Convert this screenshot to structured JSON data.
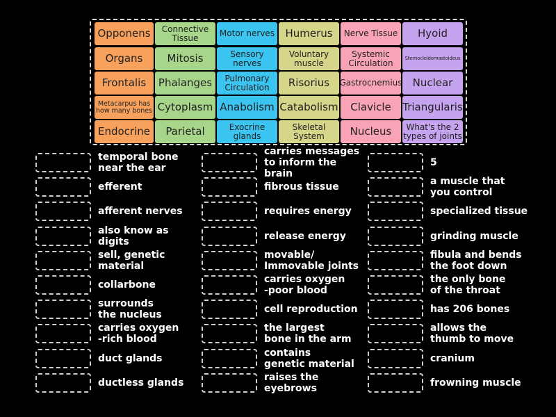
{
  "colors": {
    "orange": "#f7a15d",
    "green": "#a7d68a",
    "blue": "#3cc4f1",
    "khaki": "#d6d68a",
    "pink": "#f9a3b7",
    "purple": "#c6a3ee"
  },
  "tiles": [
    {
      "label": "Opponens",
      "color": "orange",
      "size": "l"
    },
    {
      "label": "Connective\nTissue",
      "color": "green",
      "size": "m"
    },
    {
      "label": "Motor nerves",
      "color": "blue",
      "size": "m"
    },
    {
      "label": "Humerus",
      "color": "khaki",
      "size": "l"
    },
    {
      "label": "Nerve Tissue",
      "color": "pink",
      "size": "m"
    },
    {
      "label": "Hyoid",
      "color": "purple",
      "size": "l"
    },
    {
      "label": "Organs",
      "color": "orange",
      "size": "l"
    },
    {
      "label": "Mitosis",
      "color": "green",
      "size": "l"
    },
    {
      "label": "Sensory\nnerves",
      "color": "blue",
      "size": "m"
    },
    {
      "label": "Voluntary\nmuscle",
      "color": "khaki",
      "size": "m"
    },
    {
      "label": "Systemic\nCirculation",
      "color": "pink",
      "size": "m"
    },
    {
      "label": "Sternocleidomastoideus",
      "color": "purple",
      "size": "xs"
    },
    {
      "label": "Frontalis",
      "color": "orange",
      "size": "l"
    },
    {
      "label": "Phalanges",
      "color": "green",
      "size": "l"
    },
    {
      "label": "Pulmonary\nCirculation",
      "color": "blue",
      "size": "m"
    },
    {
      "label": "Risorius",
      "color": "khaki",
      "size": "l"
    },
    {
      "label": "Gastrocnemius",
      "color": "pink",
      "size": "m"
    },
    {
      "label": "Nuclear",
      "color": "purple",
      "size": "l"
    },
    {
      "label": "Metacarpus has\nhow many bones",
      "color": "orange",
      "size": "s"
    },
    {
      "label": "Cytoplasm",
      "color": "green",
      "size": "l"
    },
    {
      "label": "Anabolism",
      "color": "blue",
      "size": "l"
    },
    {
      "label": "Catabolism",
      "color": "khaki",
      "size": "l"
    },
    {
      "label": "Clavicle",
      "color": "pink",
      "size": "l"
    },
    {
      "label": "Triangularis",
      "color": "purple",
      "size": "l"
    },
    {
      "label": "Endocrine",
      "color": "orange",
      "size": "l"
    },
    {
      "label": "Parietal",
      "color": "green",
      "size": "l"
    },
    {
      "label": "Exocrine\nglands",
      "color": "blue",
      "size": "m"
    },
    {
      "label": "Skeletal\nSystem",
      "color": "khaki",
      "size": "m"
    },
    {
      "label": "Nucleus",
      "color": "pink",
      "size": "l"
    },
    {
      "label": "What's the 2\ntypes of joints",
      "color": "purple",
      "size": "m"
    }
  ],
  "clues": [
    [
      "temporal bone\nnear the ear",
      "efferent",
      "afferent nerves",
      "also know as digits",
      "sell, genetic\nmaterial",
      "collarbone",
      "surrounds\nthe nucleus",
      "carries oxygen\n-rich blood",
      "duct glands",
      "ductless glands"
    ],
    [
      "carries messages\nto inform the brain",
      "fibrous tissue",
      "requires energy",
      "release energy",
      "movable/\nImmovable joints",
      "carries oxygen\n-poor blood",
      "cell reproduction",
      "the largest\nbone in the arm",
      "contains\ngenetic material",
      "raises the\neyebrows"
    ],
    [
      "5",
      "a muscle that\nyou control",
      "specialized tissue",
      "grinding muscle",
      "fibula and bends\nthe foot down",
      "the only bone\nof the throat",
      "has 206 bones",
      "allows the\nthumb to move",
      "cranium",
      "frowning muscle"
    ]
  ]
}
